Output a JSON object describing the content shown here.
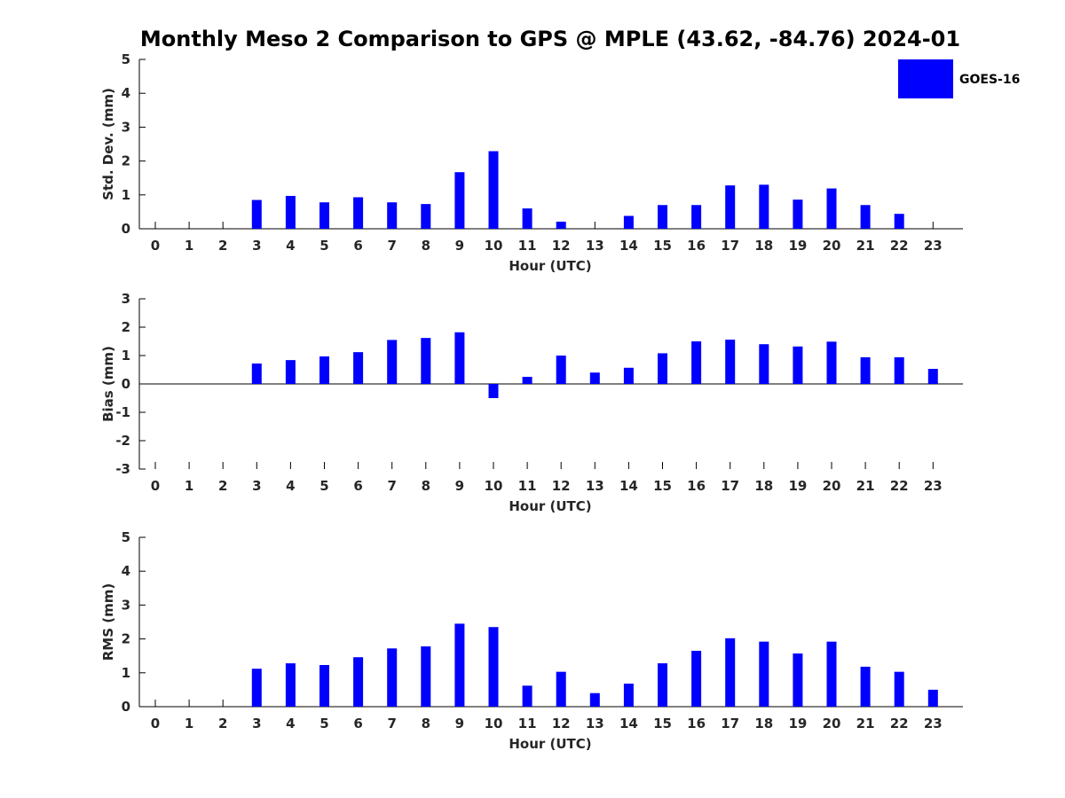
{
  "title": "Monthly Meso 2 Comparison to GPS @ MPLE (43.62, -84.76) 2024-01",
  "legend": {
    "label": "GOES-16",
    "color": "#0000ff"
  },
  "chart_data": [
    {
      "type": "bar",
      "ylabel": "Std. Dev. (mm)",
      "xlabel": "Hour (UTC)",
      "ylim": [
        0,
        5
      ],
      "yticks": [
        "0",
        "1",
        "2",
        "3",
        "4",
        "5"
      ],
      "categories": [
        "0",
        "1",
        "2",
        "3",
        "4",
        "5",
        "6",
        "7",
        "8",
        "9",
        "10",
        "11",
        "12",
        "13",
        "14",
        "15",
        "16",
        "17",
        "18",
        "19",
        "20",
        "21",
        "22",
        "23"
      ],
      "values": [
        null,
        null,
        null,
        0.85,
        0.97,
        0.78,
        0.93,
        0.78,
        0.73,
        1.67,
        2.29,
        0.6,
        0.21,
        null,
        0.38,
        0.7,
        0.7,
        1.28,
        1.3,
        0.86,
        1.19,
        0.7,
        0.44,
        null
      ]
    },
    {
      "type": "bar",
      "ylabel": "Bias (mm)",
      "xlabel": "Hour (UTC)",
      "ylim": [
        -3,
        3
      ],
      "yticks": [
        "-3",
        "-2",
        "-1",
        "0",
        "1",
        "2",
        "3"
      ],
      "categories": [
        "0",
        "1",
        "2",
        "3",
        "4",
        "5",
        "6",
        "7",
        "8",
        "9",
        "10",
        "11",
        "12",
        "13",
        "14",
        "15",
        "16",
        "17",
        "18",
        "19",
        "20",
        "21",
        "22",
        "23"
      ],
      "values": [
        null,
        null,
        null,
        0.72,
        0.84,
        0.97,
        1.12,
        1.55,
        1.62,
        1.82,
        -0.5,
        0.25,
        1.0,
        0.4,
        0.57,
        1.08,
        1.5,
        1.56,
        1.4,
        1.32,
        1.49,
        0.94,
        0.94,
        0.53
      ]
    },
    {
      "type": "bar",
      "ylabel": "RMS (mm)",
      "xlabel": "Hour (UTC)",
      "ylim": [
        0,
        5
      ],
      "yticks": [
        "0",
        "1",
        "2",
        "3",
        "4",
        "5"
      ],
      "categories": [
        "0",
        "1",
        "2",
        "3",
        "4",
        "5",
        "6",
        "7",
        "8",
        "9",
        "10",
        "11",
        "12",
        "13",
        "14",
        "15",
        "16",
        "17",
        "18",
        "19",
        "20",
        "21",
        "22",
        "23"
      ],
      "values": [
        null,
        null,
        null,
        1.12,
        1.28,
        1.23,
        1.46,
        1.72,
        1.78,
        2.45,
        2.35,
        0.62,
        1.03,
        0.4,
        0.68,
        1.28,
        1.65,
        2.02,
        1.92,
        1.57,
        1.92,
        1.18,
        1.03,
        0.5
      ]
    }
  ]
}
